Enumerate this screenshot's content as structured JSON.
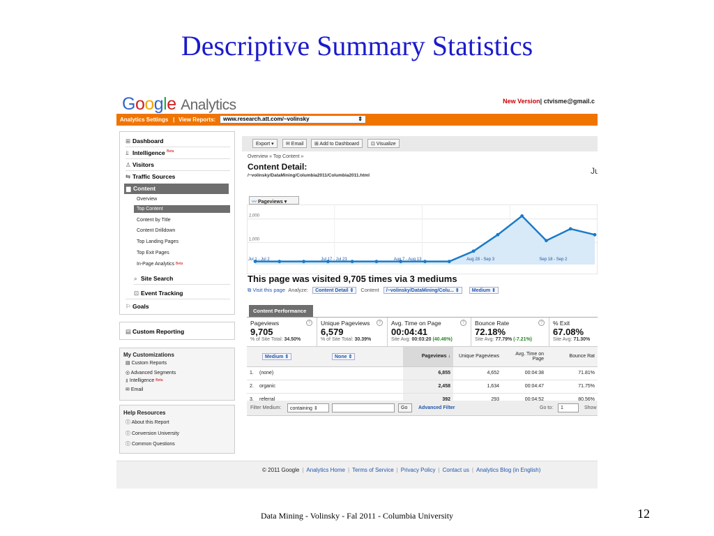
{
  "slide": {
    "title": "Descriptive Summary Statistics",
    "footer": "Data Mining - Volinsky - Fal 2011 - Columbia University",
    "page_number": "12"
  },
  "header": {
    "logo_text": "Google",
    "logo_product": "Analytics",
    "new_version": "New Version",
    "account": "| ctvisme@gmail.c"
  },
  "orange_bar": {
    "settings": "Analytics Settings",
    "divider": "|",
    "view_reports": "View Reports:",
    "site": "www.research.att.com/~volinsky"
  },
  "sidebar": {
    "nav": [
      {
        "label": "Dashboard",
        "icon": "dashboard-icon",
        "glyph": "⊞"
      },
      {
        "label": "Intelligence",
        "icon": "intelligence-icon",
        "glyph": "⫫",
        "badge": "Beta"
      },
      {
        "label": "Visitors",
        "icon": "visitors-icon",
        "glyph": "♙"
      },
      {
        "label": "Traffic Sources",
        "icon": "traffic-sources-icon",
        "glyph": "⇆"
      },
      {
        "label": "Content",
        "icon": "content-icon",
        "glyph": "▆"
      }
    ],
    "content_items": [
      {
        "label": "Overview"
      },
      {
        "label": "Top Content"
      },
      {
        "label": "Content by Title"
      },
      {
        "label": "Content Drilldown"
      },
      {
        "label": "Top Landing Pages"
      },
      {
        "label": "Top Exit Pages"
      },
      {
        "label": "In-Page Analytics",
        "badge": "Beta"
      }
    ],
    "extra_nav": [
      {
        "label": "Site Search",
        "icon": "site-search-icon",
        "glyph": "⌕"
      },
      {
        "label": "Event Tracking",
        "icon": "event-tracking-icon",
        "glyph": "⊡"
      },
      {
        "label": "Goals",
        "icon": "goals-icon",
        "glyph": "⚐"
      }
    ],
    "custom_reporting": {
      "label": "Custom Reporting",
      "icon": "custom-reporting-icon",
      "glyph": "▤"
    },
    "my_customizations": {
      "title": "My Customizations",
      "items": [
        {
          "label": "Custom Reports",
          "glyph": "▤"
        },
        {
          "label": "Advanced Segments",
          "glyph": "◎"
        },
        {
          "label": "Intelligence",
          "glyph": "⫫",
          "badge": "Beta"
        },
        {
          "label": "Email",
          "glyph": "✉"
        }
      ]
    },
    "help": {
      "title": "Help Resources",
      "items": [
        {
          "label": "About this Report"
        },
        {
          "label": "Conversion University"
        },
        {
          "label": "Common Questions"
        }
      ]
    }
  },
  "toolbar": {
    "export": "Export ▾",
    "email": "✉ Email",
    "add_dashboard": "⊞ Add to Dashboard",
    "visualize": "⊡ Visualize"
  },
  "report": {
    "breadcrumb": "Overview » Top Content »",
    "title": "Content Detail:",
    "path": "/~volinsky/DataMining/Columbia2011/Columbia2011.html",
    "date_snippet": "Ju",
    "chart_tab": "Pageviews ▾",
    "headline": "This page was visited 9,705 times via 3 mediums",
    "visit_link": "Visit this page",
    "analyze_label": "Analyze:",
    "analyze_value": "Content Detail",
    "content_label": "Content",
    "content_value": "/~volinsky/DataMining/Colu...",
    "medium_value": "Medium",
    "perf_tab": "Content Performance"
  },
  "chart_data": {
    "type": "line",
    "series": [
      {
        "values": [
          20,
          10,
          5,
          5,
          5,
          5,
          5,
          5,
          5,
          5,
          5,
          5,
          5,
          5,
          5,
          5,
          5,
          5,
          5,
          5,
          5,
          5,
          5,
          5,
          5,
          5,
          5,
          5,
          5,
          5,
          5,
          5,
          5,
          5,
          5,
          5,
          5,
          5,
          5,
          5,
          5,
          5,
          5,
          5,
          5,
          5,
          5,
          5,
          5,
          5,
          5,
          5,
          5,
          5,
          5,
          5,
          5,
          5,
          5,
          5,
          5,
          5,
          5,
          5,
          5,
          5,
          5,
          5,
          5,
          5,
          5,
          5,
          5,
          5,
          5,
          5,
          5,
          5,
          5,
          5,
          5,
          5,
          5,
          5,
          5,
          5,
          5,
          5,
          5,
          5,
          5,
          5,
          5,
          5,
          5,
          5,
          5,
          5,
          5,
          5,
          5,
          5,
          5,
          5,
          5,
          5,
          5,
          5,
          5,
          5,
          5,
          5,
          5,
          5,
          5,
          5,
          5,
          5,
          5,
          5,
          5,
          5,
          5,
          5,
          5,
          5,
          5,
          5,
          5,
          5,
          5,
          5,
          5,
          5,
          5,
          5,
          5,
          5,
          5,
          5,
          5,
          5,
          5,
          5,
          5,
          5,
          5,
          5,
          5,
          5,
          5,
          5,
          5,
          5,
          5,
          5,
          5,
          5,
          5,
          5,
          5,
          5,
          5,
          5,
          5,
          5,
          5,
          5,
          5,
          5,
          5,
          5,
          5,
          5,
          5,
          5,
          5,
          5,
          5,
          5,
          5,
          5,
          5,
          5,
          5,
          5,
          5,
          5,
          5,
          5,
          5,
          5,
          5,
          5,
          5,
          5,
          5,
          5,
          5,
          5,
          5,
          5,
          5,
          5
        ]
      }
    ],
    "points": [
      {
        "x": "Jul 1",
        "y": 15
      },
      {
        "x": "Jul 8",
        "y": 10
      },
      {
        "x": "Jul 15",
        "y": 10
      },
      {
        "x": "Jul 22",
        "y": 10
      },
      {
        "x": "Jul 29",
        "y": 10
      },
      {
        "x": "Aug 5",
        "y": 10
      },
      {
        "x": "Aug 12",
        "y": 10
      },
      {
        "x": "Aug 19",
        "y": 10
      },
      {
        "x": "Aug 26",
        "y": 10
      },
      {
        "x": "Sep 2",
        "y": 450
      },
      {
        "x": "Sep 9",
        "y": 1150
      },
      {
        "x": "Sep 16",
        "y": 1950
      },
      {
        "x": "Sep 23",
        "y": 900
      },
      {
        "x": "Sep 30",
        "y": 1400
      },
      {
        "x": "Oct 3",
        "y": 1150
      }
    ],
    "x_tick_labels": [
      "Jul 1 - Jul 2",
      "Jul 17 - Jul 23",
      "Aug 7 - Aug 13",
      "Aug 28 - Sep 3",
      "Sep 18 - Sep 2"
    ],
    "y_tick_labels": [
      "2,000",
      "1,000"
    ],
    "ylim": [
      0,
      2200
    ],
    "fill": true,
    "color": "#1a7ac8"
  },
  "metrics": [
    {
      "label": "Pageviews",
      "value": "9,705",
      "sub": "% of Site Total:",
      "sub_b": "34.50%",
      "sub_g": ""
    },
    {
      "label": "Unique Pageviews",
      "value": "6,579",
      "sub": "% of Site Total:",
      "sub_b": "30.39%",
      "sub_g": ""
    },
    {
      "label": "Avg. Time on Page",
      "value": "00:04:41",
      "sub": "Site Avg:",
      "sub_b": "00:03:20",
      "sub_g": "(40.46%)"
    },
    {
      "label": "Bounce Rate",
      "value": "72.18%",
      "sub": "Site Avg:",
      "sub_b": "77.79%",
      "sub_g": "(-7.21%)"
    },
    {
      "label": "% Exit",
      "value": "67.08%",
      "sub": "Site Avg:",
      "sub_b": "71.30%",
      "sub_g": ""
    }
  ],
  "table": {
    "dim1": "Medium",
    "dim2": "None",
    "headers": [
      "Pageviews ↓",
      "Unique Pageviews",
      "Avg. Time on Page",
      "Bounce Rat"
    ],
    "rows": [
      {
        "n": "1.",
        "medium": "(none)",
        "pageviews": "6,855",
        "unique": "4,652",
        "time": "00:04:38",
        "bounce": "71.81%"
      },
      {
        "n": "2.",
        "medium": "organic",
        "pageviews": "2,458",
        "unique": "1,634",
        "time": "00:04:47",
        "bounce": "71.75%"
      },
      {
        "n": "3.",
        "medium": "referral",
        "pageviews": "392",
        "unique": "293",
        "time": "00:04:52",
        "bounce": "80.56%"
      }
    ]
  },
  "filter": {
    "label": "Filter Medium:",
    "select": "containing",
    "go": "Go",
    "advanced": "Advanced Filter",
    "goto_label": "Go to:",
    "goto_value": "1",
    "show": "Show"
  },
  "footer": {
    "copyright": "© 2011 Google",
    "links": [
      "Analytics Home",
      "Terms of Service",
      "Privacy Policy",
      "Contact us",
      "Analytics Blog (in English)"
    ]
  }
}
